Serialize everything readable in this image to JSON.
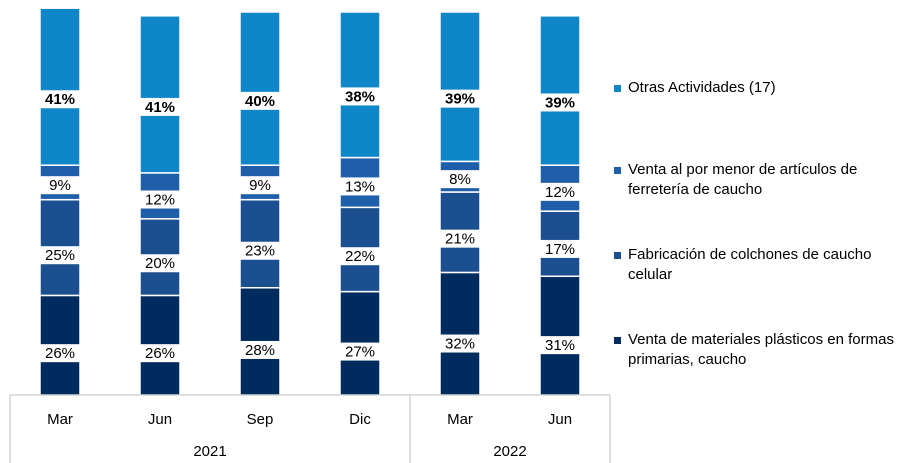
{
  "chart_data": {
    "type": "stacked_bar",
    "categories": [
      "Mar",
      "Jun",
      "Sep",
      "Dic",
      "Mar",
      "Jun"
    ],
    "groups": [
      {
        "label": "2021",
        "count": 4
      },
      {
        "label": "2022",
        "count": 2
      }
    ],
    "ylim": [
      0,
      100
    ],
    "series": [
      {
        "name": "Venta de materiales plásticos en formas primarias, caucho",
        "color": "#002b5e",
        "values": [
          26,
          26,
          28,
          27,
          32,
          31
        ],
        "value_labels": [
          "26%",
          "26%",
          "28%",
          "27%",
          "32%",
          "31%"
        ]
      },
      {
        "name": "Fabricación de colchones de caucho celular",
        "color": "#1b4f8f",
        "values": [
          25,
          20,
          23,
          22,
          21,
          17
        ],
        "value_labels": [
          "25%",
          "20%",
          "23%",
          "22%",
          "21%",
          "17%"
        ]
      },
      {
        "name": "Venta al por menor de artículos de ferretería de caucho",
        "color": "#1f5ea8",
        "values": [
          9,
          12,
          9,
          13,
          8,
          12
        ],
        "value_labels": [
          "9%",
          "12%",
          "9%",
          "13%",
          "8%",
          "12%"
        ]
      },
      {
        "name": "Otras Actividades (17)",
        "color": "#0e86c8",
        "values": [
          41,
          41,
          40,
          38,
          39,
          39
        ],
        "value_labels": [
          "41%",
          "41%",
          "40%",
          "38%",
          "39%",
          "39%"
        ]
      }
    ]
  }
}
